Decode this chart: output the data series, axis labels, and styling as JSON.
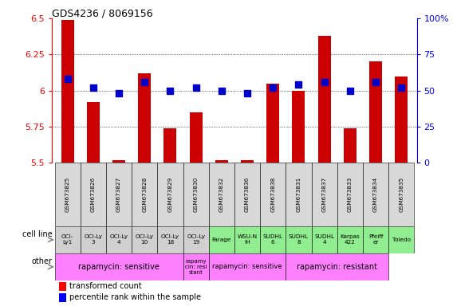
{
  "title": "GDS4236 / 8069156",
  "samples": [
    "GSM673825",
    "GSM673826",
    "GSM673827",
    "GSM673828",
    "GSM673829",
    "GSM673830",
    "GSM673832",
    "GSM673836",
    "GSM673838",
    "GSM673831",
    "GSM673837",
    "GSM673833",
    "GSM673834",
    "GSM673835"
  ],
  "transformed_counts": [
    6.49,
    5.92,
    5.52,
    6.12,
    5.74,
    5.85,
    5.52,
    5.52,
    6.05,
    6.0,
    6.38,
    5.74,
    6.2,
    6.1
  ],
  "percentile_ranks": [
    58,
    52,
    48,
    56,
    50,
    52,
    50,
    48,
    52,
    54,
    56,
    50,
    56,
    52
  ],
  "cell_lines": [
    "OCI-\nLy1",
    "OCI-Ly\n3",
    "OCI-Ly\n4",
    "OCI-Ly\n10",
    "OCI-Ly\n18",
    "OCI-Ly\n19",
    "Farage",
    "WSU-N\nIH",
    "SUDHL\n6",
    "SUDHL\n8",
    "SUDHL\n4",
    "Karpas\n422",
    "Pfeiff\ner",
    "Toledo"
  ],
  "cell_line_colors": [
    "#d0d0d0",
    "#d0d0d0",
    "#d0d0d0",
    "#d0d0d0",
    "#d0d0d0",
    "#d0d0d0",
    "#90ee90",
    "#90ee90",
    "#90ee90",
    "#90ee90",
    "#90ee90",
    "#90ee90",
    "#90ee90",
    "#90ee90"
  ],
  "other_segments": [
    {
      "text": "rapamycin: sensitive",
      "start": 0,
      "end": 5,
      "color": "#ff80ff",
      "fontsize": 7
    },
    {
      "text": "rapamy\ncin: resi\nstant",
      "start": 5,
      "end": 6,
      "color": "#ff80ff",
      "fontsize": 5
    },
    {
      "text": "rapamycin: sensitive",
      "start": 6,
      "end": 9,
      "color": "#ff80ff",
      "fontsize": 6
    },
    {
      "text": "rapamycin: resistant",
      "start": 9,
      "end": 13,
      "color": "#ff80ff",
      "fontsize": 7
    }
  ],
  "ylim_left": [
    5.5,
    6.5
  ],
  "ylim_right": [
    0,
    100
  ],
  "yticks_left": [
    5.5,
    5.75,
    6.0,
    6.25,
    6.5
  ],
  "ytick_labels_left": [
    "5.5",
    "5.75",
    "6",
    "6.25",
    "6.5"
  ],
  "yticks_right": [
    0,
    25,
    50,
    75,
    100
  ],
  "ytick_labels_right": [
    "0",
    "25",
    "50",
    "75",
    "100%"
  ],
  "bar_color": "#cc0000",
  "dot_color": "#0000cc",
  "bar_width": 0.5,
  "dot_size": 30
}
